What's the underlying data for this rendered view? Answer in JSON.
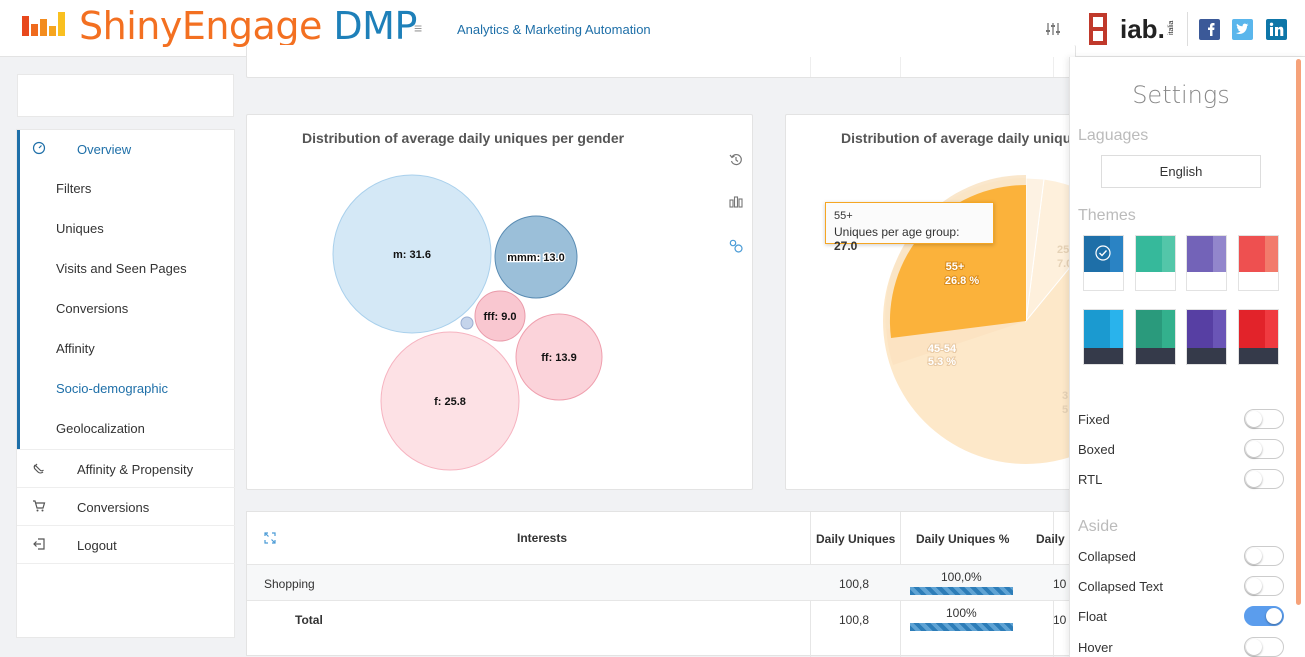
{
  "brand": {
    "name_part1": "ShinyEngage",
    "name_part2": " DMP",
    "accent_orange": "#f37021",
    "accent_blue": "#1e80b9"
  },
  "header": {
    "menu_icon": "≡",
    "subtitle": "Analytics & Marketing Automation",
    "partner_icons": [
      "sliders-icon",
      "iab-italia-logo",
      "facebook-icon",
      "twitter-icon",
      "linkedin-icon"
    ]
  },
  "sidebar": {
    "overview": "Overview",
    "sub_items": [
      "Filters",
      "Uniques",
      "Visits and Seen Pages",
      "Conversions",
      "Affinity",
      "Socio-demographic",
      "Geolocalization"
    ],
    "active_sub": "Socio-demographic",
    "items": [
      "Affinity & Propensity",
      "Conversions",
      "Logout"
    ]
  },
  "gender_chart": {
    "title": "Distribution of average daily uniques per gender",
    "tools": [
      "reset-icon",
      "bar-chart-icon",
      "bubble-chart-icon"
    ],
    "labels": [
      "m: 31.6",
      "mmm: 13.0",
      "fff: 9.0",
      "ff: 13.9",
      "f: 25.8"
    ]
  },
  "age_chart": {
    "title": "Distribution of average daily uniques per age group",
    "slice_labels": {
      "s55": "55+",
      "s55_pct": "26.8 %",
      "s4554": "45-54",
      "s4554_pct": "5.3 %",
      "s25": "25",
      "s25_pct": "7.0",
      "s35": "3",
      "s35_pct": "5"
    },
    "tooltip": {
      "category": "55+",
      "label": "Uniques per age group: ",
      "value": "27.0"
    }
  },
  "chart_data": [
    {
      "type": "scatter",
      "title": "Distribution of average daily uniques per gender",
      "series": [
        {
          "values": [
            {
              "label": "m",
              "value": 31.6
            },
            {
              "label": "mmm",
              "value": 13.0
            },
            {
              "label": "fff",
              "value": 9.0
            },
            {
              "label": "ff",
              "value": 13.9
            },
            {
              "label": "f",
              "value": 25.8
            }
          ]
        }
      ]
    },
    {
      "type": "pie",
      "title": "Distribution of average daily uniques per age group",
      "categories": [
        "55+",
        "45-54"
      ],
      "values": [
        26.8,
        5.3
      ],
      "unit": "%"
    }
  ],
  "table": {
    "columns": [
      "Interests",
      "Daily Uniques",
      "Daily Uniques %",
      "Daily"
    ],
    "rows": [
      {
        "interest": "Shopping",
        "uniques": "100,8",
        "pct": "100,0%",
        "daily": "10"
      },
      {
        "interest": "Total",
        "uniques": "100,8",
        "pct": "100%",
        "daily": "10"
      }
    ]
  },
  "settings": {
    "title": "Settings",
    "languages_heading": "Laguages",
    "language": "English",
    "themes_heading": "Themes",
    "themes": [
      {
        "top": "#1e6fa8",
        "top2": "#2a83c4",
        "bottom": "#ffffff",
        "selected": true
      },
      {
        "top": "#36b99b",
        "top2": "#53c6a9",
        "bottom": "#ffffff"
      },
      {
        "top": "#7363b8",
        "top2": "#9286cc",
        "bottom": "#ffffff"
      },
      {
        "top": "#ee5050",
        "top2": "#f27b6c",
        "bottom": "#ffffff"
      },
      {
        "top": "#1b9ad0",
        "top2": "#29b3ec",
        "bottom": "#353a4a"
      },
      {
        "top": "#2a9a7c",
        "top2": "#33b08d",
        "bottom": "#353a4a"
      },
      {
        "top": "#573fa3",
        "top2": "#6a55b6",
        "bottom": "#353a4a"
      },
      {
        "top": "#e2232a",
        "top2": "#f03a40",
        "bottom": "#353a4a"
      }
    ],
    "layout_options": [
      {
        "label": "Fixed",
        "on": false
      },
      {
        "label": "Boxed",
        "on": false
      },
      {
        "label": "RTL",
        "on": false
      }
    ],
    "aside_heading": "Aside",
    "aside_options": [
      {
        "label": "Collapsed",
        "on": false
      },
      {
        "label": "Collapsed Text",
        "on": false
      },
      {
        "label": "Float",
        "on": true
      },
      {
        "label": "Hover",
        "on": false
      }
    ]
  }
}
